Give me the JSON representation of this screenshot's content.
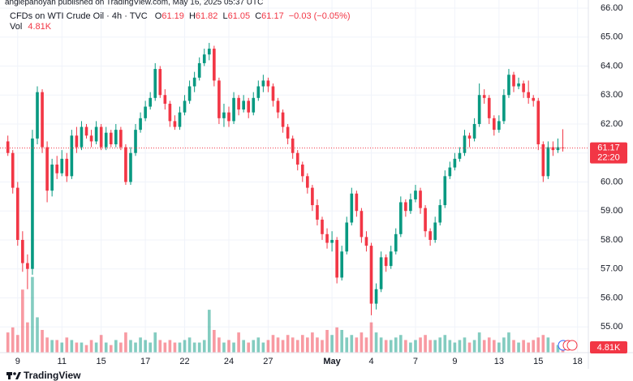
{
  "watermark": "anglepanoyan published on TradingView.com, May 16, 2025 05:37 UTC",
  "footer": "TradingView",
  "chart_data": {
    "type": "candlestick",
    "title": "CFDs on WTI Crude Oil · 4h · TVC",
    "ohlc_labels": [
      "O",
      "H",
      "L",
      "C"
    ],
    "change": "−0.03 (−0.05%)",
    "volume_title": "Vol",
    "volume_label": "4.81K",
    "countdown": "22:20",
    "up_color": "#089981",
    "down_color": "#f23645",
    "grid": true,
    "ylim": [
      54.11,
      66.28
    ],
    "yticks": [
      {
        "value": 55,
        "label": "55.00"
      },
      {
        "value": 56,
        "label": "56.00"
      },
      {
        "value": 57,
        "label": "57.00"
      },
      {
        "value": 58,
        "label": "58.00"
      },
      {
        "value": 59,
        "label": "59.00"
      },
      {
        "value": 60,
        "label": "60.00"
      },
      {
        "value": 61,
        "label": "61.00"
      },
      {
        "value": 62,
        "label": "62.00"
      },
      {
        "value": 63,
        "label": "63.00"
      },
      {
        "value": 64,
        "label": "64.00"
      },
      {
        "value": 65,
        "label": "65.00"
      },
      {
        "value": 66,
        "label": "66.00"
      }
    ],
    "xlim": [
      -1.6,
      118.2
    ],
    "xticks": [
      {
        "value": 2,
        "label": "9"
      },
      {
        "value": 11,
        "label": "11"
      },
      {
        "value": 19,
        "label": "15"
      },
      {
        "value": 28,
        "label": "17"
      },
      {
        "value": 36,
        "label": "22"
      },
      {
        "value": 45,
        "label": "24"
      },
      {
        "value": 53,
        "label": "27"
      },
      {
        "value": 66,
        "label": "May"
      },
      {
        "value": 74,
        "label": "4"
      },
      {
        "value": 83,
        "label": "7"
      },
      {
        "value": 91,
        "label": "9"
      },
      {
        "value": 100,
        "label": "13"
      },
      {
        "value": 108,
        "label": "15"
      },
      {
        "value": 116,
        "label": "18"
      }
    ],
    "volume_ylim": [
      0,
      45
    ],
    "open": [
      61.4,
      61.0,
      59.8,
      58.0,
      57.2,
      57.0,
      61.5,
      63.1,
      61.2,
      59.7,
      60.6,
      60.3,
      60.8,
      60.2,
      61.6,
      61.2,
      61.9,
      61.6,
      61.4,
      61.9,
      61.2,
      61.7,
      61.3,
      61.8,
      61.2,
      60.0,
      61.0,
      61.8,
      62.2,
      62.6,
      62.9,
      63.9,
      63.0,
      62.7,
      62.1,
      61.9,
      62.4,
      62.8,
      63.3,
      63.6,
      64.1,
      64.4,
      64.6,
      63.5,
      62.2,
      62.4,
      62.1,
      62.9,
      62.5,
      62.8,
      62.4,
      62.9,
      63.3,
      63.5,
      63.3,
      62.8,
      62.4,
      61.9,
      61.5,
      61.0,
      60.6,
      60.2,
      59.8,
      59.2,
      58.7,
      58.2,
      57.9,
      58.0,
      56.7,
      57.6,
      58.6,
      59.6,
      59.0,
      58.1,
      57.8,
      55.8,
      56.3,
      57.4,
      57.1,
      57.6,
      58.2,
      59.3,
      59.0,
      59.4,
      59.7,
      59.1,
      58.3,
      58.0,
      58.6,
      59.2,
      60.2,
      60.5,
      60.8,
      61.0,
      61.6,
      61.5,
      62.0,
      63.0,
      62.9,
      62.2,
      61.8,
      62.1,
      63.0,
      63.7,
      63.3,
      63.4,
      63.1,
      62.9,
      62.8,
      61.3,
      60.2,
      61.2,
      61.1,
      61.19
    ],
    "high": [
      61.6,
      61.1,
      60.0,
      58.3,
      57.5,
      61.8,
      63.3,
      63.2,
      61.4,
      60.8,
      60.9,
      61.1,
      61.0,
      61.8,
      61.9,
      62.1,
      62.0,
      61.8,
      62.1,
      62.0,
      61.9,
      61.8,
      62.0,
      61.9,
      61.3,
      61.2,
      62.0,
      62.4,
      62.8,
      63.1,
      64.1,
      64.0,
      63.2,
      62.8,
      62.3,
      62.6,
      63.0,
      63.5,
      63.8,
      64.3,
      64.6,
      64.8,
      64.7,
      63.6,
      62.7,
      62.6,
      63.1,
      63.0,
      63.0,
      62.9,
      63.1,
      63.5,
      63.7,
      63.6,
      63.4,
      62.9,
      62.5,
      62.0,
      61.6,
      61.1,
      60.7,
      60.3,
      59.9,
      59.4,
      58.8,
      58.4,
      58.3,
      58.1,
      57.8,
      58.8,
      59.8,
      59.7,
      59.1,
      58.3,
      57.9,
      56.5,
      57.6,
      57.5,
      57.8,
      58.4,
      59.5,
      59.4,
      59.6,
      59.9,
      59.8,
      59.2,
      58.4,
      58.8,
      59.4,
      60.4,
      60.7,
      61.0,
      61.2,
      61.8,
      61.7,
      62.2,
      63.4,
      63.2,
      63.0,
      62.3,
      62.3,
      63.2,
      63.9,
      63.8,
      63.6,
      63.5,
      63.5,
      63.0,
      62.9,
      61.4,
      61.4,
      61.4,
      61.5,
      61.82
    ],
    "low": [
      60.9,
      59.6,
      57.8,
      56.9,
      56.3,
      56.8,
      61.3,
      61.0,
      59.3,
      59.5,
      60.1,
      60.2,
      60.0,
      60.1,
      61.0,
      61.1,
      61.5,
      61.2,
      61.3,
      61.1,
      61.1,
      61.2,
      61.2,
      61.1,
      59.9,
      59.9,
      60.9,
      61.7,
      62.1,
      62.5,
      62.8,
      62.9,
      62.5,
      61.9,
      61.8,
      61.8,
      62.3,
      62.7,
      63.1,
      63.5,
      64.0,
      64.2,
      63.3,
      62.0,
      61.9,
      61.9,
      62.0,
      62.3,
      62.4,
      62.2,
      62.3,
      62.8,
      63.1,
      63.1,
      62.6,
      62.2,
      61.7,
      61.3,
      60.8,
      60.4,
      60.0,
      59.6,
      59.0,
      58.5,
      58.0,
      57.7,
      57.6,
      56.5,
      56.6,
      57.5,
      58.5,
      58.8,
      57.9,
      57.6,
      55.4,
      55.6,
      56.2,
      56.9,
      57.0,
      57.5,
      58.1,
      58.8,
      58.9,
      59.3,
      58.9,
      58.1,
      57.8,
      57.9,
      58.5,
      59.1,
      60.1,
      60.4,
      60.7,
      60.9,
      61.2,
      61.4,
      61.9,
      62.7,
      62.0,
      61.6,
      61.7,
      62.0,
      62.9,
      63.1,
      63.2,
      62.9,
      62.7,
      62.6,
      61.1,
      60.0,
      60.1,
      60.9,
      61.0,
      61.05
    ],
    "close": [
      61.0,
      59.8,
      58.0,
      57.2,
      57.0,
      61.5,
      63.1,
      61.2,
      59.7,
      60.6,
      60.3,
      60.8,
      60.2,
      61.6,
      61.2,
      61.9,
      61.6,
      61.4,
      61.9,
      61.2,
      61.7,
      61.3,
      61.8,
      61.2,
      60.0,
      61.0,
      61.8,
      62.2,
      62.6,
      62.9,
      63.9,
      63.0,
      62.7,
      62.1,
      61.9,
      62.4,
      62.8,
      63.3,
      63.6,
      64.1,
      64.4,
      64.6,
      63.5,
      62.2,
      62.4,
      62.1,
      62.9,
      62.5,
      62.8,
      62.4,
      62.9,
      63.3,
      63.5,
      63.3,
      62.8,
      62.4,
      61.9,
      61.5,
      61.0,
      60.6,
      60.2,
      59.8,
      59.2,
      58.7,
      58.2,
      57.9,
      58.0,
      56.7,
      57.6,
      58.6,
      59.6,
      59.0,
      58.1,
      57.8,
      55.8,
      56.3,
      57.4,
      57.1,
      57.6,
      58.2,
      59.3,
      59.0,
      59.4,
      59.7,
      59.1,
      58.3,
      58.0,
      58.6,
      59.2,
      60.2,
      60.5,
      60.8,
      61.0,
      61.6,
      61.5,
      62.0,
      63.0,
      62.9,
      62.2,
      61.8,
      62.1,
      63.0,
      63.7,
      63.3,
      63.4,
      63.1,
      62.9,
      62.8,
      61.3,
      60.2,
      61.2,
      61.1,
      61.2,
      61.17
    ],
    "volume": [
      8,
      10,
      7,
      25,
      12,
      30,
      14,
      9,
      6,
      5,
      5,
      4,
      6,
      5,
      4,
      4,
      3,
      5,
      4,
      7,
      4,
      3,
      5,
      4,
      8,
      5,
      4,
      6,
      5,
      4,
      8,
      5,
      4,
      5,
      4,
      4,
      5,
      6,
      4,
      4,
      5,
      17,
      9,
      6,
      4,
      5,
      4,
      8,
      5,
      4,
      5,
      6,
      4,
      5,
      7,
      6,
      5,
      7,
      6,
      5,
      7,
      6,
      8,
      6,
      5,
      9,
      7,
      10,
      9,
      6,
      7,
      6,
      8,
      6,
      12,
      8,
      6,
      5,
      5,
      6,
      7,
      5,
      4,
      5,
      6,
      7,
      5,
      5,
      6,
      7,
      5,
      4,
      5,
      6,
      4,
      5,
      8,
      5,
      6,
      5,
      4,
      6,
      8,
      5,
      4,
      5,
      4,
      5,
      6,
      7,
      6,
      4,
      3,
      4.81
    ]
  }
}
